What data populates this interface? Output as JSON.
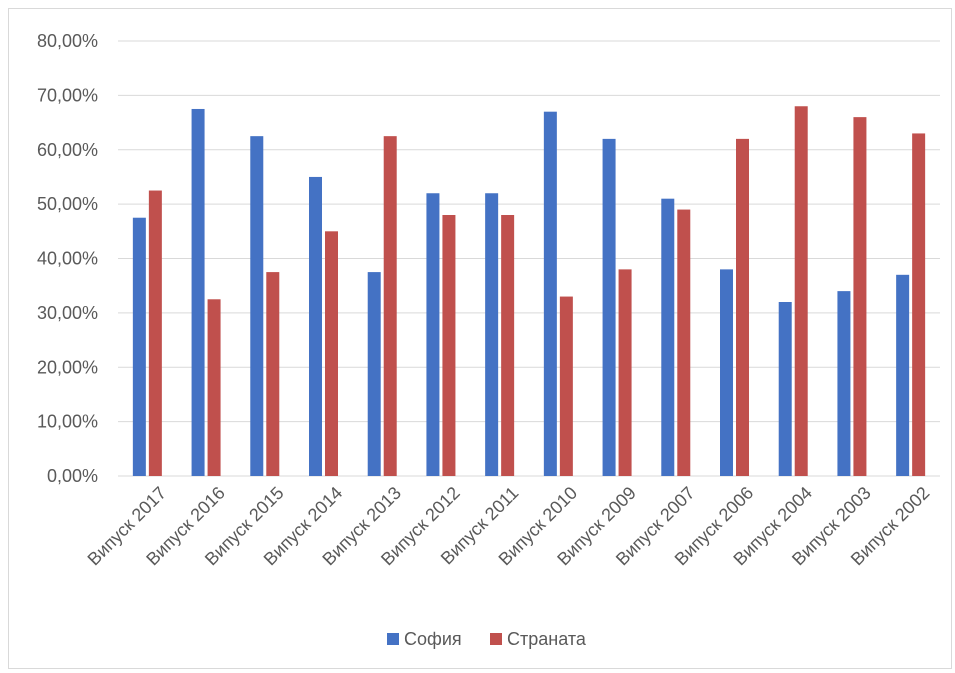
{
  "chart_data": {
    "type": "bar",
    "categories": [
      "Випуск 2017",
      "Випуск 2016",
      "Випуск 2015",
      "Випуск 2014",
      "Випуск 2013",
      "Випуск 2012",
      "Випуск 2011",
      "Випуск 2010",
      "Випуск 2009",
      "Випуск 2007",
      "Випуск 2006",
      "Випуск 2004",
      "Випуск 2003",
      "Випуск 2002"
    ],
    "series": [
      {
        "name": "София",
        "color": "#4472C4",
        "values": [
          47.5,
          67.5,
          62.5,
          55,
          37.5,
          52,
          52,
          67,
          62,
          51,
          38,
          32,
          34,
          37
        ]
      },
      {
        "name": "Страната",
        "color": "#C0504D",
        "values": [
          52.5,
          32.5,
          37.5,
          45,
          62.5,
          48,
          48,
          33,
          38,
          49,
          62,
          68,
          66,
          63
        ]
      }
    ],
    "ylim": [
      0,
      80
    ],
    "yticks": [
      "0,00%",
      "10,00%",
      "20,00%",
      "30,00%",
      "40,00%",
      "50,00%",
      "60,00%",
      "70,00%",
      "80,00%"
    ],
    "ytick_values": [
      0,
      10,
      20,
      30,
      40,
      50,
      60,
      70,
      80
    ],
    "grid": true,
    "legend_position": "bottom"
  }
}
